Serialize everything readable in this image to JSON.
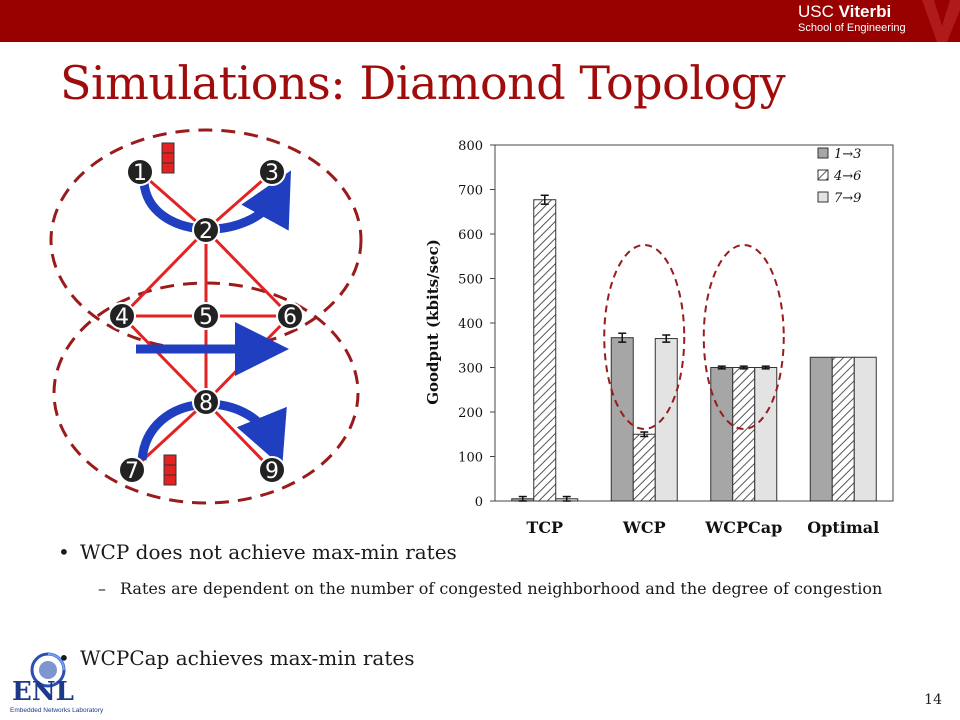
{
  "header": {
    "brand_line1_a": "USC",
    "brand_line1_b": "Viterbi",
    "brand_line2": "School of Engineering"
  },
  "title": "Simulations: Diamond Topology",
  "diagram": {
    "nodes": [
      "1",
      "2",
      "3",
      "4",
      "5",
      "6",
      "7",
      "8",
      "9"
    ]
  },
  "chart_data": {
    "type": "bar",
    "categories": [
      "TCP",
      "WCP",
      "WCPCap",
      "Optimal"
    ],
    "series": [
      {
        "name": "1→3",
        "values": [
          5,
          367,
          300,
          323
        ]
      },
      {
        "name": "4→6",
        "values": [
          677,
          150,
          300,
          323
        ]
      },
      {
        "name": "7→9",
        "values": [
          5,
          365,
          300,
          323
        ]
      }
    ],
    "ylabel": "Goodput (kbits/sec)",
    "xlabel": "",
    "ylim": [
      0,
      800
    ],
    "yticks": [
      "0",
      "100",
      "200",
      "300",
      "400",
      "500",
      "600",
      "700",
      "800"
    ],
    "legend_placement": "top-right",
    "colors": {
      "s1": "#a6a6a6",
      "s2": "hatched",
      "s3": "#e3e3e3"
    }
  },
  "bullets": {
    "b1": "WCP does not achieve max-min rates",
    "b2": "Rates are dependent on the number of congested neighborhood and the degree of congestion",
    "b3": "WCPCap achieves max-min rates"
  },
  "footer": {
    "lab_logo_text": "ENL",
    "lab_name": "Embedded Networks Laboratory",
    "page_number": "14"
  },
  "colors": {
    "header": "#990000",
    "title": "#a00c0c",
    "dashed_circle": "#9a1b1b",
    "link": "#e32222",
    "arrow": "#1f3fc0"
  }
}
